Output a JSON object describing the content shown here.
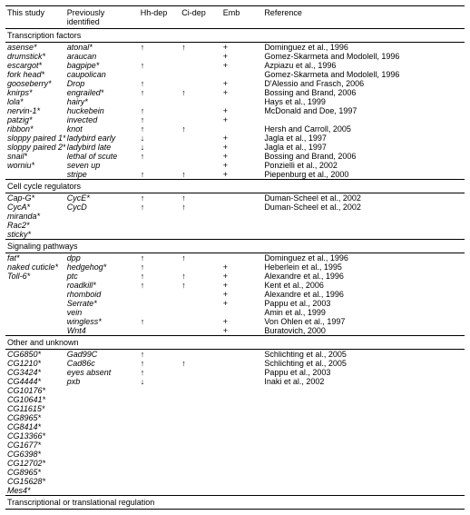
{
  "headers": {
    "c1": "This study",
    "c2": "Previously identified",
    "c3": "Hh-dep",
    "c4": "Ci-dep",
    "c5": "Emb",
    "c6": "Reference"
  },
  "arrows": {
    "up": "↑",
    "down": "↓",
    "plus": "+",
    "pm": "±"
  },
  "sections": [
    {
      "title": "Transcription factors",
      "rows": [
        {
          "a": "asense*",
          "b": "atonal*",
          "h": "↑",
          "c": "↑",
          "e": "+",
          "r": "Dominguez et al., 1996"
        },
        {
          "a": "drumstick*",
          "b": "araucan",
          "h": "",
          "c": "",
          "e": "+",
          "r": "Gomez-Skarmeta and Modolell, 1996"
        },
        {
          "a": "escargot*",
          "b": "bagpipe*",
          "h": "↑",
          "c": "",
          "e": "+",
          "r": "Azpiazu et al., 1996"
        },
        {
          "a": "fork head*",
          "b": "caupolican",
          "h": "",
          "c": "",
          "e": "",
          "r": "Gomez-Skarmeta and Modolell, 1996"
        },
        {
          "a": "gooseberry*",
          "b": "Drop",
          "h": "↑",
          "c": "",
          "e": "+",
          "r": "D'Alessio and Frasch, 2006"
        },
        {
          "a": "knirps*",
          "b": "engrailed*",
          "h": "↑",
          "c": "↑",
          "e": "+",
          "r": "Bossing and Brand, 2006"
        },
        {
          "a": "lola*",
          "b": "hairy*",
          "h": "",
          "c": "",
          "e": "",
          "r": "Hays et al., 1999"
        },
        {
          "a": "nervin-1*",
          "b": "huckebein",
          "h": "↑",
          "c": "",
          "e": "+",
          "r": "McDonald and Doe, 1997"
        },
        {
          "a": "patzig*",
          "b": "invected",
          "h": "↑",
          "c": "",
          "e": "+",
          "r": ""
        },
        {
          "a": "ribbon*",
          "b": "knot",
          "h": "↑",
          "c": "↑",
          "e": "",
          "r": "Hersh and Carroll, 2005"
        },
        {
          "a": "sloppy paired 1*",
          "b": "ladybird early",
          "h": "↓",
          "c": "",
          "e": "+",
          "r": "Jagla et al., 1997"
        },
        {
          "a": "sloppy paired 2*",
          "b": "ladybird late",
          "h": "↓",
          "c": "",
          "e": "+",
          "r": "Jagla et al., 1997"
        },
        {
          "a": "snail*",
          "b": "lethal of scute",
          "h": "↑",
          "c": "",
          "e": "+",
          "r": "Bossing and Brand, 2006"
        },
        {
          "a": "worniu*",
          "b": "seven up",
          "h": "",
          "c": "",
          "e": "+",
          "r": "Ponzielli et al., 2002"
        },
        {
          "a": "",
          "b": "stripe",
          "h": "↑",
          "c": "↑",
          "e": "+",
          "r": "Piepenburg et al., 2000"
        }
      ]
    },
    {
      "title": "Cell cycle regulators",
      "rows": [
        {
          "a": "Cap-G*",
          "b": "CycE*",
          "h": "↑",
          "c": "↑",
          "e": "",
          "r": "Duman-Scheel et al., 2002"
        },
        {
          "a": "CycA*",
          "b": "CycD",
          "h": "↑",
          "c": "↑",
          "e": "",
          "r": "Duman-Scheel et al., 2002"
        },
        {
          "a": "miranda*",
          "b": "",
          "h": "",
          "c": "",
          "e": "",
          "r": ""
        },
        {
          "a": "Rac2*",
          "b": "",
          "h": "",
          "c": "",
          "e": "",
          "r": ""
        },
        {
          "a": "sticky*",
          "b": "",
          "h": "",
          "c": "",
          "e": "",
          "r": ""
        }
      ]
    },
    {
      "title": "Signaling pathways",
      "rows": [
        {
          "a": "fat*",
          "b": "dpp",
          "h": "↑",
          "c": "↑",
          "e": "",
          "r": "Dominguez et al., 1996"
        },
        {
          "a": "naked cuticle*",
          "b": "hedgehog*",
          "h": "↑",
          "c": "",
          "e": "+",
          "r": "Heberlein et al., 1995"
        },
        {
          "a": "Toll-6*",
          "b": "ptc",
          "h": "↑",
          "c": "↑",
          "e": "+",
          "r": "Alexandre et al., 1996"
        },
        {
          "a": "",
          "b": "roadkill*",
          "h": "↑",
          "c": "↑",
          "e": "+",
          "r": "Kent et al., 2006"
        },
        {
          "a": "",
          "b": "rhomboid",
          "h": "",
          "c": "",
          "e": "+",
          "r": "Alexandre et al., 1996"
        },
        {
          "a": "",
          "b": "Serrate*",
          "h": "",
          "c": "",
          "e": "+",
          "r": "Pappu et al., 2003"
        },
        {
          "a": "",
          "b": "vein",
          "h": "",
          "c": "",
          "e": "",
          "r": "Amin et al., 1999"
        },
        {
          "a": "",
          "b": "wingless*",
          "h": "↑",
          "c": "",
          "e": "+",
          "r": "Von Ohlen et al., 1997"
        },
        {
          "a": "",
          "b": "Wnt4",
          "h": "",
          "c": "",
          "e": "+",
          "r": "Buratovich, 2000"
        }
      ]
    },
    {
      "title": "Other and unknown",
      "rows": [
        {
          "a": "CG6850*",
          "b": "Gad99C",
          "h": "↑",
          "c": "",
          "e": "",
          "r": "Schlichting et al., 2005"
        },
        {
          "a": "CG1210*",
          "b": "Cad86c",
          "h": "↑",
          "c": "↑",
          "e": "",
          "r": "Schlichting et al., 2005"
        },
        {
          "a": "CG3424*",
          "b": "eyes absent",
          "h": "↑",
          "c": "",
          "e": "",
          "r": "Pappu et al., 2003"
        },
        {
          "a": "CG4444*",
          "b": "pxb",
          "h": "↓",
          "c": "",
          "e": "",
          "r": "Inaki et al., 2002"
        },
        {
          "a": "CG10176*",
          "b": "",
          "h": "",
          "c": "",
          "e": "",
          "r": ""
        },
        {
          "a": "CG10641*",
          "b": "",
          "h": "",
          "c": "",
          "e": "",
          "r": ""
        },
        {
          "a": "CG11615*",
          "b": "",
          "h": "",
          "c": "",
          "e": "",
          "r": ""
        },
        {
          "a": "CG8965*",
          "b": "",
          "h": "",
          "c": "",
          "e": "",
          "r": ""
        },
        {
          "a": "CG8414*",
          "b": "",
          "h": "",
          "c": "",
          "e": "",
          "r": ""
        },
        {
          "a": "CG13366*",
          "b": "",
          "h": "",
          "c": "",
          "e": "",
          "r": ""
        },
        {
          "a": "CG1677*",
          "b": "",
          "h": "",
          "c": "",
          "e": "",
          "r": ""
        },
        {
          "a": "CG6398*",
          "b": "",
          "h": "",
          "c": "",
          "e": "",
          "r": ""
        },
        {
          "a": "CG12702*",
          "b": "",
          "h": "",
          "c": "",
          "e": "",
          "r": ""
        },
        {
          "a": "CG8965*",
          "b": "",
          "h": "",
          "c": "",
          "e": "",
          "r": ""
        },
        {
          "a": "CG15628*",
          "b": "",
          "h": "",
          "c": "",
          "e": "",
          "r": ""
        },
        {
          "a": "Mes4*",
          "b": "",
          "h": "",
          "c": "",
          "e": "",
          "r": ""
        }
      ]
    },
    {
      "title": "Transcriptional or translational regulation",
      "rows": []
    }
  ]
}
